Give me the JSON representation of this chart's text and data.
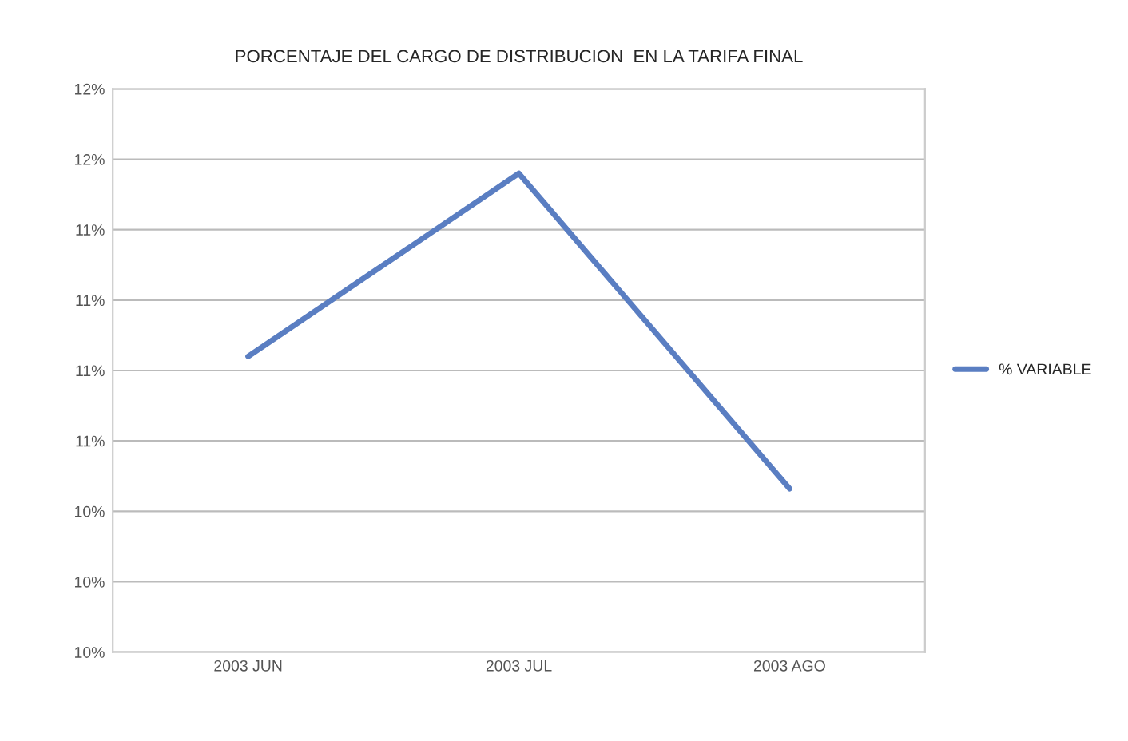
{
  "chart_data": {
    "type": "line",
    "title": "PORCENTAJE DEL CARGO DE DISTRIBUCION  EN LA TARIFA FINAL",
    "categories": [
      "2003 JUN",
      "2003 JUL",
      "2003 AGO"
    ],
    "series": [
      {
        "name": "% VARIABLE",
        "color": "#5a7ec2",
        "values": [
          11.05,
          11.7,
          10.58
        ]
      }
    ],
    "ylim": [
      10.0,
      12.0
    ],
    "yticks": [
      {
        "value": 10.0,
        "label": "10%"
      },
      {
        "value": 10.25,
        "label": "10%"
      },
      {
        "value": 10.5,
        "label": "10%"
      },
      {
        "value": 10.75,
        "label": "11%"
      },
      {
        "value": 11.0,
        "label": "11%"
      },
      {
        "value": 11.25,
        "label": "11%"
      },
      {
        "value": 11.5,
        "label": "11%"
      },
      {
        "value": 11.75,
        "label": "12%"
      },
      {
        "value": 12.0,
        "label": "12%"
      }
    ],
    "grid": "y",
    "legend": "right",
    "marker": "none",
    "line_style": "solid"
  }
}
